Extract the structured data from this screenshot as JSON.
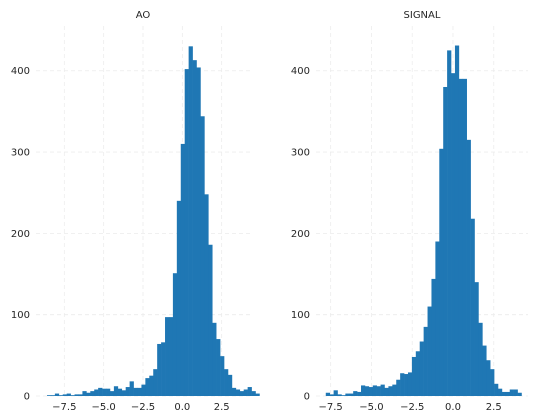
{
  "chart_data": [
    {
      "type": "bar",
      "title": "AO",
      "xlabel": "",
      "ylabel": "",
      "x_range": [
        -9.3,
        4.3
      ],
      "ylim": [
        0,
        455
      ],
      "x_ticks": [
        -7.5,
        -5.0,
        -2.5,
        0.0,
        2.5
      ],
      "x_tick_labels": [
        "−7.5",
        "−5.0",
        "−2.5",
        "0.0",
        "2.5"
      ],
      "y_ticks": [
        0,
        100,
        200,
        300,
        400
      ],
      "y_tick_labels": [
        "0",
        "100",
        "200",
        "300",
        "400"
      ],
      "grid": true,
      "bin_start": -8.6,
      "bin_width": 0.25,
      "values": [
        1,
        1,
        3,
        1,
        2,
        3,
        1,
        2,
        2,
        6,
        4,
        6,
        8,
        10,
        9,
        9,
        6,
        12,
        9,
        7,
        11,
        18,
        10,
        10,
        14,
        22,
        25,
        33,
        64,
        66,
        97,
        97,
        151,
        240,
        310,
        402,
        430,
        413,
        404,
        344,
        248,
        186,
        90,
        70,
        49,
        33,
        26,
        10,
        8,
        6,
        8,
        11,
        6,
        3
      ]
    },
    {
      "type": "bar",
      "title": "SIGNAL",
      "xlabel": "",
      "ylabel": "",
      "x_range": [
        -8.4,
        4.6
      ],
      "ylim": [
        0,
        455
      ],
      "x_ticks": [
        -7.5,
        -5.0,
        -2.5,
        0.0,
        2.5
      ],
      "x_tick_labels": [
        "−7.5",
        "−5.0",
        "−2.5",
        "0.0",
        "2.5"
      ],
      "y_ticks": [
        0,
        100,
        200,
        300,
        400
      ],
      "y_tick_labels": [
        "0",
        "100",
        "200",
        "300",
        "400"
      ],
      "grid": true,
      "bin_start": -7.8,
      "bin_width": 0.24,
      "values": [
        4,
        2,
        7,
        2,
        1,
        3,
        3,
        6,
        5,
        13,
        12,
        11,
        13,
        12,
        14,
        10,
        12,
        14,
        20,
        28,
        27,
        29,
        48,
        55,
        67,
        85,
        110,
        144,
        190,
        304,
        380,
        425,
        397,
        431,
        390,
        390,
        315,
        218,
        140,
        90,
        62,
        44,
        33,
        15,
        9,
        5,
        5,
        8,
        8,
        4
      ]
    }
  ]
}
